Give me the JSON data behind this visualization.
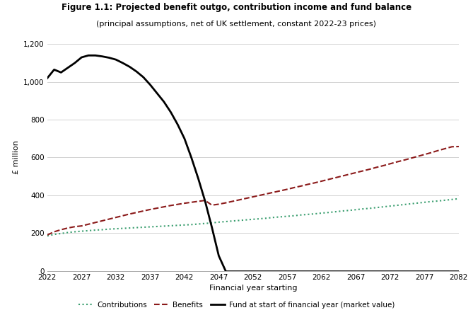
{
  "title": "Figure 1.1: Projected benefit outgo, contribution income and fund balance",
  "subtitle": "(principal assumptions, net of UK settlement, constant 2022-23 prices)",
  "xlabel": "Financial year starting",
  "ylabel": "£ million",
  "xlim": [
    2022,
    2082
  ],
  "ylim": [
    0,
    1200
  ],
  "yticks": [
    0,
    200,
    400,
    600,
    800,
    1000,
    1200
  ],
  "xticks": [
    2022,
    2027,
    2032,
    2037,
    2042,
    2047,
    2052,
    2057,
    2062,
    2067,
    2072,
    2077,
    2082
  ],
  "contributions": {
    "x": [
      2022,
      2023,
      2024,
      2025,
      2026,
      2027,
      2028,
      2029,
      2030,
      2031,
      2032,
      2033,
      2034,
      2035,
      2036,
      2037,
      2038,
      2039,
      2040,
      2041,
      2042,
      2043,
      2044,
      2045,
      2046,
      2047,
      2048,
      2049,
      2050,
      2051,
      2052,
      2053,
      2054,
      2055,
      2056,
      2057,
      2058,
      2059,
      2060,
      2061,
      2062,
      2063,
      2064,
      2065,
      2066,
      2067,
      2068,
      2069,
      2070,
      2071,
      2072,
      2073,
      2074,
      2075,
      2076,
      2077,
      2078,
      2079,
      2080,
      2081,
      2082
    ],
    "y": [
      185,
      193,
      198,
      203,
      207,
      210,
      213,
      216,
      218,
      221,
      223,
      225,
      227,
      229,
      231,
      233,
      235,
      237,
      239,
      241,
      243,
      245,
      248,
      251,
      254,
      258,
      261,
      264,
      267,
      270,
      273,
      276,
      279,
      283,
      286,
      289,
      292,
      296,
      299,
      302,
      306,
      309,
      313,
      317,
      320,
      324,
      328,
      331,
      335,
      339,
      343,
      347,
      351,
      355,
      359,
      363,
      367,
      370,
      374,
      378,
      382
    ],
    "color": "#3a9e6f",
    "linestyle": "dotted",
    "linewidth": 1.5,
    "label": "Contributions"
  },
  "benefits": {
    "x": [
      2022,
      2023,
      2024,
      2025,
      2026,
      2027,
      2028,
      2029,
      2030,
      2031,
      2032,
      2033,
      2034,
      2035,
      2036,
      2037,
      2038,
      2039,
      2040,
      2041,
      2042,
      2043,
      2044,
      2045,
      2046,
      2047,
      2048,
      2049,
      2050,
      2051,
      2052,
      2053,
      2054,
      2055,
      2056,
      2057,
      2058,
      2059,
      2060,
      2061,
      2062,
      2063,
      2064,
      2065,
      2066,
      2067,
      2068,
      2069,
      2070,
      2071,
      2072,
      2073,
      2074,
      2075,
      2076,
      2077,
      2078,
      2079,
      2080,
      2081,
      2082
    ],
    "y": [
      190,
      207,
      218,
      227,
      234,
      238,
      247,
      256,
      265,
      274,
      283,
      292,
      301,
      309,
      317,
      325,
      332,
      339,
      346,
      352,
      358,
      363,
      368,
      373,
      348,
      353,
      360,
      368,
      376,
      384,
      392,
      400,
      408,
      416,
      424,
      432,
      441,
      449,
      458,
      466,
      475,
      484,
      493,
      502,
      511,
      520,
      529,
      538,
      548,
      557,
      567,
      577,
      586,
      596,
      606,
      616,
      626,
      637,
      647,
      657,
      658
    ],
    "color": "#8b1a1a",
    "linestyle": "dashed",
    "linewidth": 1.5,
    "label": "Benefits"
  },
  "fund": {
    "x": [
      2022,
      2023,
      2024,
      2025,
      2026,
      2027,
      2028,
      2029,
      2030,
      2031,
      2032,
      2033,
      2034,
      2035,
      2036,
      2037,
      2038,
      2039,
      2040,
      2041,
      2042,
      2043,
      2044,
      2045,
      2046,
      2047,
      2048
    ],
    "y": [
      1020,
      1065,
      1050,
      1075,
      1100,
      1130,
      1140,
      1140,
      1135,
      1128,
      1118,
      1100,
      1080,
      1055,
      1025,
      985,
      940,
      895,
      840,
      775,
      700,
      600,
      490,
      370,
      230,
      80,
      0
    ],
    "color": "#000000",
    "linestyle": "solid",
    "linewidth": 2.0,
    "label": "Fund at start of financial year (market value)"
  },
  "fund_zero": {
    "x": [
      2048,
      2082
    ],
    "y": [
      0,
      0
    ]
  },
  "background_color": "#ffffff",
  "grid_color": "#cccccc",
  "title_fontsize": 8.5,
  "subtitle_fontsize": 8.0,
  "label_fontsize": 8.0,
  "tick_fontsize": 7.5,
  "legend_fontsize": 7.5
}
